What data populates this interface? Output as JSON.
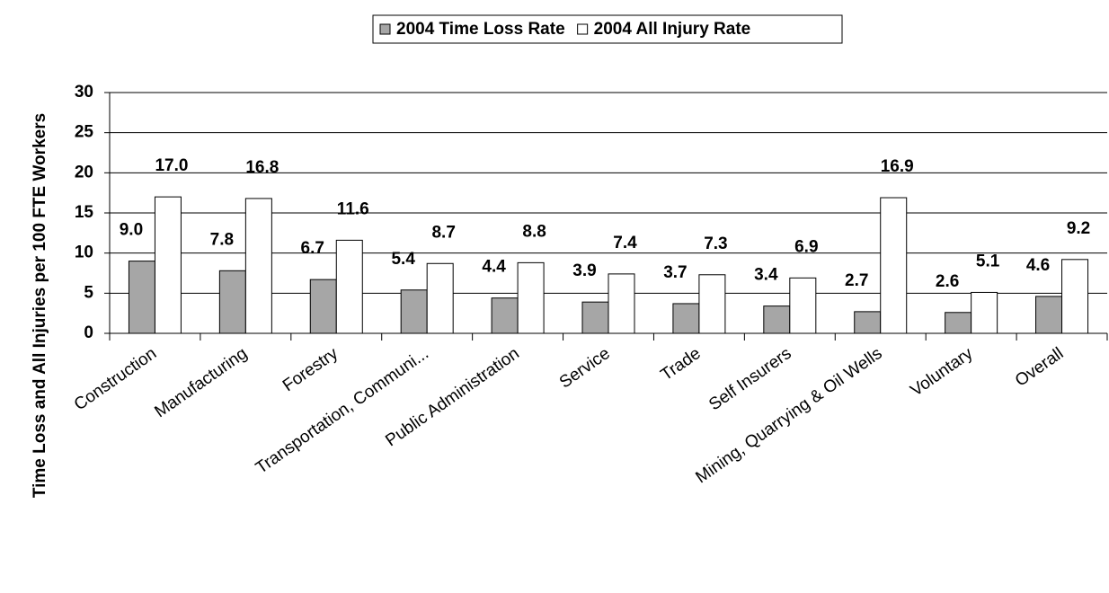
{
  "chart_data": {
    "type": "bar",
    "y_label": "Time Loss and All Injuries per 100 FTE Workers",
    "categories": [
      "Construction",
      "Manufacturing",
      "Forestry",
      "Transportation, Communi...",
      "Public Administration",
      "Service",
      "Trade",
      "Self Insurers",
      "Mining, Quarrying & Oil Wells",
      "Voluntary",
      "Overall"
    ],
    "series": [
      {
        "name": "2004 Time Loss Rate",
        "color": "#a6a6a6",
        "values": [
          9.0,
          7.8,
          6.7,
          5.4,
          4.4,
          3.9,
          3.7,
          3.4,
          2.7,
          2.6,
          4.6
        ],
        "value_labels": [
          "9.0",
          "7.8",
          "6.7",
          "5.4",
          "4.4",
          "3.9",
          "3.7",
          "3.4",
          "2.7",
          "2.6",
          "4.6"
        ]
      },
      {
        "name": "2004 All Injury Rate",
        "color": "#ffffff",
        "values": [
          17.0,
          16.8,
          11.6,
          8.7,
          8.8,
          7.4,
          7.3,
          6.9,
          16.9,
          5.1,
          9.2
        ],
        "value_labels": [
          "17.0",
          "16.8",
          "11.6",
          "8.7",
          "8.8",
          "7.4",
          "7.3",
          "6.9",
          "16.9",
          "5.1",
          "9.2"
        ]
      }
    ],
    "ylim": [
      0,
      30
    ],
    "yticks": [
      0,
      5,
      10,
      15,
      20,
      25,
      30
    ],
    "grid": true,
    "legend": "top"
  }
}
